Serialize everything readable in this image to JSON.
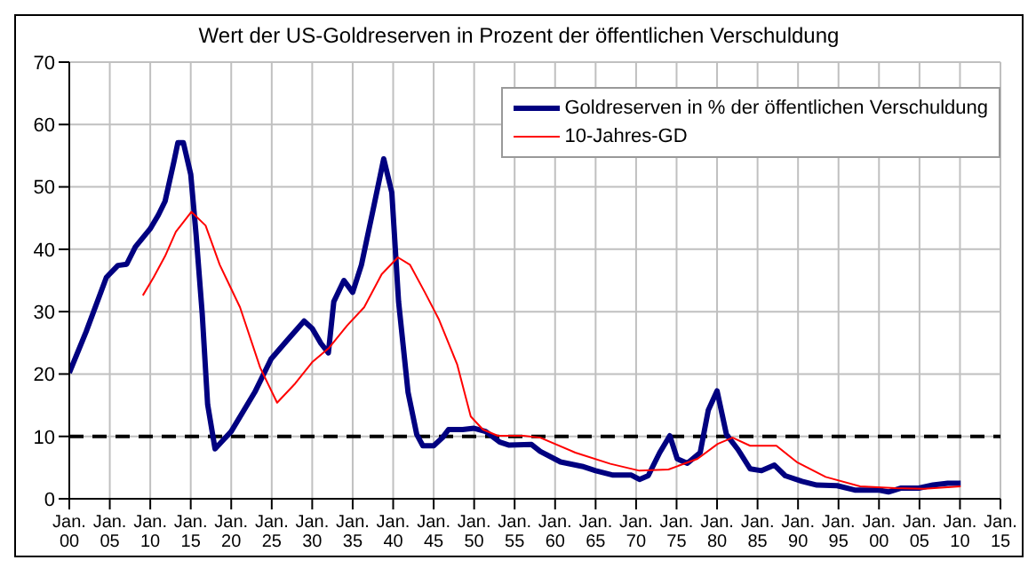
{
  "chart_data": {
    "type": "line",
    "title": "Wert der US-Goldreserven in Prozent der öffentlichen Verschuldung",
    "series": [
      {
        "name": "Goldreserven in % der öffentlichen Verschuldung",
        "color": "#000080",
        "x": [
          "1900-01",
          "1902-02",
          "1904-08",
          "1906-01",
          "1907-02",
          "1908-03",
          "1910-01",
          "1911-01",
          "1911-11",
          "1912-12",
          "1913-06",
          "1914-02",
          "1915-01",
          "1915-09",
          "1916-06",
          "1917-02",
          "1918-01",
          "1920-01",
          "1922-12",
          "1924-12",
          "1926-11",
          "1929-01",
          "1930-01",
          "1931-02",
          "1932-01",
          "1932-09",
          "1933-12",
          "1935-01",
          "1936-02",
          "1937-07",
          "1938-11",
          "1939-11",
          "1940-09",
          "1941-11",
          "1942-12",
          "1943-09",
          "1945-01",
          "1946-02",
          "1946-11",
          "1948-08",
          "1950-01",
          "1951-06",
          "1953-03",
          "1954-05",
          "1957-02",
          "1958-03",
          "1960-09",
          "1963-05",
          "1965-01",
          "1967-03",
          "1969-06",
          "1970-06",
          "1971-07",
          "1972-12",
          "1974-03",
          "1975-02",
          "1976-05",
          "1977-12",
          "1978-12",
          "1980-01",
          "1981-03",
          "1982-08",
          "1984-02",
          "1985-07",
          "1987-02",
          "1988-06",
          "1990-07",
          "1992-05",
          "1994-11",
          "1997-01",
          "1999-12",
          "2001-03",
          "2002-09",
          "2004-12",
          "2006-09",
          "2008-07",
          "2010-02"
        ],
        "values": [
          20.2,
          26.8,
          35.5,
          37.4,
          37.6,
          40.4,
          43.3,
          45.5,
          47.7,
          54,
          57.1,
          57.1,
          52,
          42.3,
          29.7,
          15.1,
          8,
          10.8,
          17.1,
          22.4,
          25.3,
          28.5,
          27.3,
          24.9,
          23.4,
          31.6,
          35,
          33.1,
          37.5,
          46.2,
          54.5,
          49.1,
          31.6,
          17.1,
          10.3,
          8.5,
          8.5,
          9.8,
          11.1,
          11.1,
          11.3,
          10.8,
          9.1,
          8.6,
          8.7,
          7.6,
          5.9,
          5.2,
          4.5,
          3.8,
          3.8,
          3.1,
          3.7,
          7.4,
          10.1,
          6.4,
          5.7,
          7.4,
          14.2,
          17.3,
          10.3,
          7.9,
          4.8,
          4.5,
          5.4,
          3.7,
          2.8,
          2.2,
          2.1,
          1.4,
          1.4,
          1.1,
          1.7,
          1.7,
          2.2,
          2.5,
          2.5
        ]
      },
      {
        "name": "10-Jahres-GD",
        "color": "#ff0000",
        "x": [
          "1909-02",
          "1910-06",
          "1911-11",
          "1913-03",
          "1915-02",
          "1916-11",
          "1918-08",
          "1921-02",
          "1923-08",
          "1925-09",
          "1927-12",
          "1930-01",
          "1932-02",
          "1934-05",
          "1936-06",
          "1938-08",
          "1940-08",
          "1942-02",
          "1943-12",
          "1945-09",
          "1947-12",
          "1949-08",
          "1951-02",
          "1952-12",
          "1955-01",
          "1956-02",
          "1958-03",
          "1962-07",
          "1966-11",
          "1970-06",
          "1974-01",
          "1977-08",
          "1980-02",
          "1981-12",
          "1984-02",
          "1987-05",
          "1989-11",
          "1993-06",
          "1997-09",
          "2002-01",
          "2005-08",
          "2010-02"
        ],
        "values": [
          32.6,
          35.5,
          38.9,
          42.8,
          46,
          43.8,
          37.5,
          30.7,
          21,
          15.4,
          18.5,
          21.9,
          24.2,
          27.8,
          30.7,
          36,
          38.7,
          37.5,
          33.1,
          28.7,
          21.5,
          13.2,
          11.1,
          10.1,
          10.1,
          10.1,
          9.8,
          7.4,
          5.6,
          4.5,
          4.7,
          6.4,
          8.8,
          9.8,
          8.5,
          8.5,
          5.9,
          3.5,
          2,
          1.7,
          1.6,
          2
        ]
      }
    ],
    "xlim": [
      "1900-01",
      "2015-01"
    ],
    "xticks": [
      {
        "value": "1900-01",
        "label": "Jan. 00"
      },
      {
        "value": "1905-01",
        "label": "Jan. 05"
      },
      {
        "value": "1910-01",
        "label": "Jan. 10"
      },
      {
        "value": "1915-01",
        "label": "Jan. 15"
      },
      {
        "value": "1920-01",
        "label": "Jan. 20"
      },
      {
        "value": "1925-01",
        "label": "Jan. 25"
      },
      {
        "value": "1930-01",
        "label": "Jan. 30"
      },
      {
        "value": "1935-01",
        "label": "Jan. 35"
      },
      {
        "value": "1940-01",
        "label": "Jan. 40"
      },
      {
        "value": "1945-01",
        "label": "Jan. 45"
      },
      {
        "value": "1950-01",
        "label": "Jan. 50"
      },
      {
        "value": "1955-01",
        "label": "Jan. 55"
      },
      {
        "value": "1960-01",
        "label": "Jan. 60"
      },
      {
        "value": "1965-01",
        "label": "Jan. 65"
      },
      {
        "value": "1970-01",
        "label": "Jan. 70"
      },
      {
        "value": "1975-01",
        "label": "Jan. 75"
      },
      {
        "value": "1980-01",
        "label": "Jan. 80"
      },
      {
        "value": "1985-01",
        "label": "Jan. 85"
      },
      {
        "value": "1990-01",
        "label": "Jan. 90"
      },
      {
        "value": "1995-01",
        "label": "Jan. 95"
      },
      {
        "value": "2000-01",
        "label": "Jan. 00"
      },
      {
        "value": "2005-01",
        "label": "Jan. 05"
      },
      {
        "value": "2010-01",
        "label": "Jan. 10"
      },
      {
        "value": "2015-01",
        "label": "Jan. 15"
      }
    ],
    "ylim": [
      0,
      70
    ],
    "yticks": [
      0,
      10,
      20,
      30,
      40,
      50,
      60,
      70
    ],
    "ref_lines": [
      {
        "axis": "y",
        "value": 10,
        "color": "#000000",
        "line_style": "dashed"
      }
    ],
    "grid": true,
    "legend": "top right",
    "marker": "none",
    "line_style": "solid"
  }
}
